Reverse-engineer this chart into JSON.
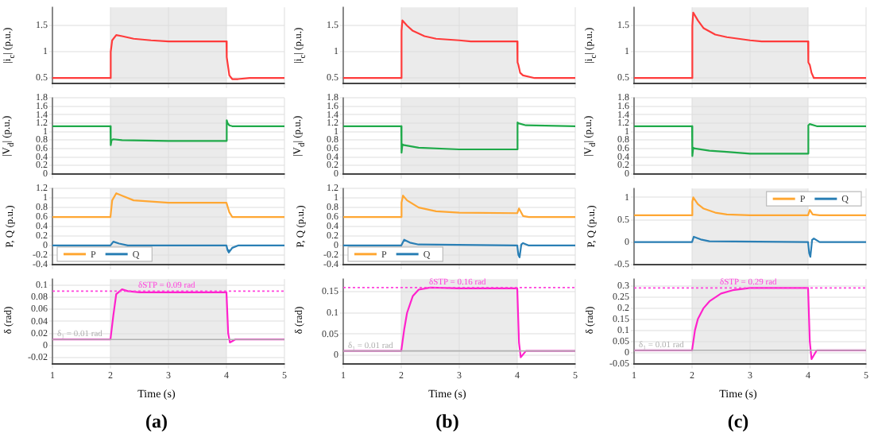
{
  "chart_data": [
    {
      "type": "line",
      "ylabel": "|i$_{c}$| (p.u.)",
      "xlim": [
        1,
        5
      ],
      "xticks": [
        1,
        2,
        3,
        4,
        5
      ],
      "ylim": [
        0.4,
        1.85
      ],
      "yticks": [
        0.5,
        1,
        1.5
      ],
      "tick_labels": "y",
      "grid": true,
      "bands": [
        {
          "axis": "x",
          "from": 2,
          "to": 4,
          "color": "#ebebeb"
        }
      ],
      "series": [
        {
          "color": "#ff3b3b",
          "x": [
            1,
            2,
            2.005,
            2.03,
            2.1,
            2.2,
            2.4,
            2.7,
            3,
            4,
            4.005,
            4.05,
            4.1,
            4.2,
            4.4,
            5
          ],
          "values": [
            0.5,
            0.5,
            1.0,
            1.22,
            1.32,
            1.3,
            1.25,
            1.22,
            1.2,
            1.2,
            0.9,
            0.55,
            0.48,
            0.48,
            0.5,
            0.5
          ]
        }
      ]
    },
    {
      "type": "line",
      "ylabel": "|V$_{d}$| (p.u.)",
      "xlim": [
        1,
        5
      ],
      "xticks": [
        1,
        2,
        3,
        4,
        5
      ],
      "ylim": [
        0,
        1.8
      ],
      "yticks": [
        0,
        0.2,
        0.4,
        0.6,
        0.8,
        1,
        1.2,
        1.4,
        1.6,
        1.8
      ],
      "tick_labels": "y",
      "grid": true,
      "bands": [
        {
          "axis": "x",
          "from": 2,
          "to": 4,
          "color": "#ebebeb"
        }
      ],
      "series": [
        {
          "color": "#1faa4a",
          "x": [
            1,
            2,
            2.005,
            2.02,
            2.05,
            2.2,
            3,
            4,
            4.005,
            4.02,
            4.05,
            4.1,
            5
          ],
          "values": [
            1.13,
            1.13,
            0.68,
            0.8,
            0.82,
            0.8,
            0.78,
            0.78,
            1.27,
            1.2,
            1.15,
            1.13,
            1.13
          ]
        }
      ]
    },
    {
      "type": "line",
      "ylabel": "P, Q (p.u.)",
      "xlim": [
        1,
        5
      ],
      "xticks": [
        1,
        2,
        3,
        4,
        5
      ],
      "ylim": [
        -0.4,
        1.2
      ],
      "yticks": [
        -0.4,
        -0.2,
        0,
        0.2,
        0.4,
        0.6,
        0.8,
        1,
        1.2
      ],
      "tick_labels": "y",
      "grid": true,
      "legend": "bottom left",
      "bands": [
        {
          "axis": "x",
          "from": 2,
          "to": 4,
          "color": "#ebebeb"
        }
      ],
      "series": [
        {
          "name": "P",
          "color": "#ffa733",
          "x": [
            1,
            2,
            2.03,
            2.1,
            2.2,
            2.4,
            3,
            4,
            4.05,
            4.1,
            4.2,
            5
          ],
          "values": [
            0.6,
            0.6,
            0.95,
            1.1,
            1.05,
            0.95,
            0.9,
            0.9,
            0.7,
            0.6,
            0.6,
            0.6
          ]
        },
        {
          "name": "Q",
          "color": "#2a7fb5",
          "x": [
            1,
            2,
            2.05,
            2.15,
            2.3,
            4,
            4.02,
            4.04,
            4.1,
            4.2,
            5
          ],
          "values": [
            0,
            0,
            0.08,
            0.04,
            0,
            0,
            -0.1,
            -0.15,
            -0.05,
            0,
            0
          ]
        }
      ]
    },
    {
      "type": "line",
      "ylabel": "δ (rad)",
      "xlabel": "Time (s)",
      "annotations": [
        "(a)"
      ],
      "xlim": [
        1,
        5
      ],
      "xticks": [
        1,
        2,
        3,
        4,
        5
      ],
      "ylim": [
        -0.03,
        0.11
      ],
      "yticks": [
        -0.02,
        0,
        0.02,
        0.04,
        0.06,
        0.08,
        0.1
      ],
      "grid": true,
      "bands": [
        {
          "axis": "x",
          "from": 2,
          "to": 4,
          "color": "#ebebeb"
        }
      ],
      "ref_lines": [
        {
          "axis": "y",
          "value": 0.09,
          "label": "δSTP = 0.09 rad",
          "color": "#ff44dd",
          "line_style": "dotted"
        },
        {
          "axis": "y",
          "value": 0.01,
          "label": "δ₁ = 0.01 rad",
          "color": "#b0b0b0",
          "line_style": "solid"
        }
      ],
      "series": [
        {
          "color": "#ff22cc",
          "x": [
            1,
            2,
            2.05,
            2.1,
            2.2,
            2.3,
            2.5,
            3,
            4,
            4.03,
            4.06,
            4.15,
            5
          ],
          "values": [
            0.01,
            0.01,
            0.05,
            0.085,
            0.093,
            0.09,
            0.088,
            0.088,
            0.088,
            0.02,
            0.005,
            0.01,
            0.01
          ]
        }
      ]
    },
    {
      "type": "line",
      "ylabel": "|i$_{c}$| (p.u.)",
      "xlim": [
        1,
        5
      ],
      "xticks": [
        1,
        2,
        3,
        4,
        5
      ],
      "ylim": [
        0.4,
        1.85
      ],
      "yticks": [
        0.5,
        1,
        1.5
      ],
      "tick_labels": "y",
      "grid": true,
      "bands": [
        {
          "axis": "x",
          "from": 2,
          "to": 4,
          "color": "#ebebeb"
        }
      ],
      "series": [
        {
          "color": "#ff3b3b",
          "x": [
            1,
            2,
            2.005,
            2.02,
            2.1,
            2.2,
            2.4,
            2.6,
            3,
            3.2,
            4,
            4.005,
            4.02,
            4.05,
            4.1,
            4.3,
            5
          ],
          "values": [
            0.5,
            0.5,
            1.4,
            1.6,
            1.5,
            1.4,
            1.3,
            1.25,
            1.22,
            1.2,
            1.2,
            0.8,
            0.75,
            0.6,
            0.55,
            0.5,
            0.5
          ]
        }
      ]
    },
    {
      "type": "line",
      "ylabel": "|V$_{d}$| (p.u.)",
      "xlim": [
        1,
        5
      ],
      "xticks": [
        1,
        2,
        3,
        4,
        5
      ],
      "ylim": [
        0,
        1.8
      ],
      "yticks": [
        0,
        0.2,
        0.4,
        0.6,
        0.8,
        1,
        1.2,
        1.4,
        1.6,
        1.8
      ],
      "tick_labels": "y",
      "grid": true,
      "bands": [
        {
          "axis": "x",
          "from": 2,
          "to": 4,
          "color": "#ebebeb"
        }
      ],
      "series": [
        {
          "color": "#1faa4a",
          "x": [
            1,
            2,
            2.005,
            2.02,
            2.05,
            2.3,
            3,
            4,
            4.005,
            4.02,
            4.15,
            5
          ],
          "values": [
            1.13,
            1.13,
            0.5,
            0.7,
            0.68,
            0.62,
            0.58,
            0.58,
            1.22,
            1.2,
            1.15,
            1.13
          ]
        }
      ]
    },
    {
      "type": "line",
      "ylabel": "P, Q (p.u.)",
      "xlim": [
        1,
        5
      ],
      "xticks": [
        1,
        2,
        3,
        4,
        5
      ],
      "ylim": [
        -0.4,
        1.2
      ],
      "yticks": [
        -0.4,
        -0.2,
        0,
        0.2,
        0.4,
        0.6,
        0.8,
        1,
        1.2
      ],
      "tick_labels": "y",
      "grid": true,
      "legend": "bottom left",
      "bands": [
        {
          "axis": "x",
          "from": 2,
          "to": 4,
          "color": "#ebebeb"
        }
      ],
      "series": [
        {
          "name": "P",
          "color": "#ffa733",
          "x": [
            1,
            2,
            2.005,
            2.03,
            2.1,
            2.3,
            2.6,
            3,
            4,
            4.03,
            4.1,
            4.2,
            5
          ],
          "values": [
            0.6,
            0.6,
            0.9,
            1.05,
            0.95,
            0.8,
            0.72,
            0.69,
            0.68,
            0.78,
            0.62,
            0.6,
            0.6
          ]
        },
        {
          "name": "Q",
          "color": "#2a7fb5",
          "x": [
            1,
            2,
            2.05,
            2.15,
            2.3,
            4,
            4.02,
            4.04,
            4.07,
            4.1,
            4.2,
            5
          ],
          "values": [
            0,
            0,
            0.12,
            0.06,
            0.02,
            0,
            -0.2,
            -0.25,
            0.02,
            0.05,
            0,
            0
          ]
        }
      ]
    },
    {
      "type": "line",
      "ylabel": "δ (rad)",
      "xlabel": "Time (s)",
      "annotations": [
        "(b)"
      ],
      "xlim": [
        1,
        5
      ],
      "xticks": [
        1,
        2,
        3,
        4,
        5
      ],
      "ylim": [
        -0.02,
        0.18
      ],
      "yticks": [
        0,
        0.05,
        0.1,
        0.15
      ],
      "grid": true,
      "bands": [
        {
          "axis": "x",
          "from": 2,
          "to": 4,
          "color": "#ebebeb"
        }
      ],
      "ref_lines": [
        {
          "axis": "y",
          "value": 0.16,
          "label": "δSTP = 0.16 rad",
          "color": "#ff44dd",
          "line_style": "dotted"
        },
        {
          "axis": "y",
          "value": 0.01,
          "label": "δ₁ = 0.01 rad",
          "color": "#b0b0b0",
          "line_style": "solid"
        }
      ],
      "series": [
        {
          "color": "#ff22cc",
          "x": [
            1,
            2,
            2.05,
            2.1,
            2.2,
            2.3,
            2.5,
            3,
            4,
            4.03,
            4.06,
            4.15,
            5
          ],
          "values": [
            0.01,
            0.01,
            0.06,
            0.1,
            0.14,
            0.155,
            0.16,
            0.158,
            0.158,
            0.03,
            -0.005,
            0.01,
            0.01
          ]
        }
      ]
    },
    {
      "type": "line",
      "ylabel": "|i$_{c}$| (p.u.)",
      "xlim": [
        1,
        5
      ],
      "xticks": [
        1,
        2,
        3,
        4,
        5
      ],
      "ylim": [
        0.4,
        1.85
      ],
      "yticks": [
        0.5,
        1,
        1.5
      ],
      "tick_labels": "y",
      "grid": true,
      "bands": [
        {
          "axis": "x",
          "from": 2,
          "to": 4,
          "color": "#ebebeb"
        }
      ],
      "series": [
        {
          "color": "#ff3b3b",
          "x": [
            1,
            2,
            2.005,
            2.02,
            2.1,
            2.2,
            2.4,
            2.6,
            3,
            3.2,
            4,
            4.005,
            4.03,
            4.06,
            4.1,
            4.2,
            5
          ],
          "values": [
            0.5,
            0.5,
            1.5,
            1.75,
            1.6,
            1.45,
            1.33,
            1.28,
            1.22,
            1.2,
            1.2,
            0.8,
            0.75,
            0.6,
            0.5,
            0.5,
            0.5
          ]
        }
      ]
    },
    {
      "type": "line",
      "ylabel": "|V$_{d}$| (p.u.)",
      "xlim": [
        1,
        5
      ],
      "xticks": [
        1,
        2,
        3,
        4,
        5
      ],
      "ylim": [
        0,
        1.8
      ],
      "yticks": [
        0,
        0.2,
        0.4,
        0.6,
        0.8,
        1,
        1.2,
        1.4,
        1.6,
        1.8
      ],
      "tick_labels": "y",
      "grid": true,
      "bands": [
        {
          "axis": "x",
          "from": 2,
          "to": 4,
          "color": "#ebebeb"
        }
      ],
      "series": [
        {
          "color": "#1faa4a",
          "x": [
            1,
            2,
            2.005,
            2.02,
            2.05,
            2.3,
            2.6,
            3,
            4,
            4.005,
            4.03,
            4.15,
            5
          ],
          "values": [
            1.13,
            1.13,
            0.42,
            0.62,
            0.6,
            0.55,
            0.52,
            0.48,
            0.48,
            1.15,
            1.18,
            1.13,
            1.13
          ]
        }
      ]
    },
    {
      "type": "line",
      "ylabel": "P, Q (p.u.)",
      "xlim": [
        1,
        5
      ],
      "xticks": [
        1,
        2,
        3,
        4,
        5
      ],
      "ylim": [
        -0.5,
        1.2
      ],
      "yticks": [
        -0.5,
        0,
        0.5,
        1
      ],
      "tick_labels": "y",
      "grid": true,
      "legend": "top right",
      "bands": [
        {
          "axis": "x",
          "from": 2,
          "to": 4,
          "color": "#ebebeb"
        }
      ],
      "series": [
        {
          "name": "P",
          "color": "#ffa733",
          "x": [
            1,
            2,
            2.005,
            2.02,
            2.1,
            2.2,
            2.4,
            2.6,
            3,
            4,
            4.03,
            4.08,
            4.2,
            5
          ],
          "values": [
            0.6,
            0.6,
            0.9,
            1.0,
            0.85,
            0.75,
            0.66,
            0.62,
            0.6,
            0.6,
            0.72,
            0.62,
            0.6,
            0.6
          ]
        },
        {
          "name": "Q",
          "color": "#2a7fb5",
          "x": [
            1,
            2,
            2.03,
            2.15,
            2.3,
            4,
            4.02,
            4.04,
            4.07,
            4.1,
            4.2,
            5
          ],
          "values": [
            0,
            0,
            0.12,
            0.06,
            0.02,
            0,
            -0.25,
            -0.33,
            0.05,
            0.08,
            0,
            0
          ]
        }
      ]
    },
    {
      "type": "line",
      "ylabel": "δ (rad)",
      "xlabel": "Time (s)",
      "annotations": [
        "(c)"
      ],
      "xlim": [
        1,
        5
      ],
      "xticks": [
        1,
        2,
        3,
        4,
        5
      ],
      "ylim": [
        -0.05,
        0.33
      ],
      "yticks": [
        -0.05,
        0,
        0.05,
        0.1,
        0.15,
        0.2,
        0.25,
        0.3
      ],
      "grid": true,
      "bands": [
        {
          "axis": "x",
          "from": 2,
          "to": 4,
          "color": "#ebebeb"
        }
      ],
      "ref_lines": [
        {
          "axis": "y",
          "value": 0.29,
          "label": "δSTP = 0.29 rad",
          "color": "#ff44dd",
          "line_style": "dotted"
        },
        {
          "axis": "y",
          "value": 0.01,
          "label": "δ₁ = 0.01 rad",
          "color": "#b0b0b0",
          "line_style": "solid"
        }
      ],
      "series": [
        {
          "color": "#ff22cc",
          "x": [
            1,
            2,
            2.05,
            2.1,
            2.2,
            2.3,
            2.5,
            2.7,
            3,
            4,
            4.03,
            4.06,
            4.15,
            5
          ],
          "values": [
            0.01,
            0.01,
            0.1,
            0.15,
            0.2,
            0.23,
            0.265,
            0.28,
            0.29,
            0.29,
            0.05,
            -0.03,
            0.01,
            0.01
          ]
        }
      ]
    }
  ]
}
